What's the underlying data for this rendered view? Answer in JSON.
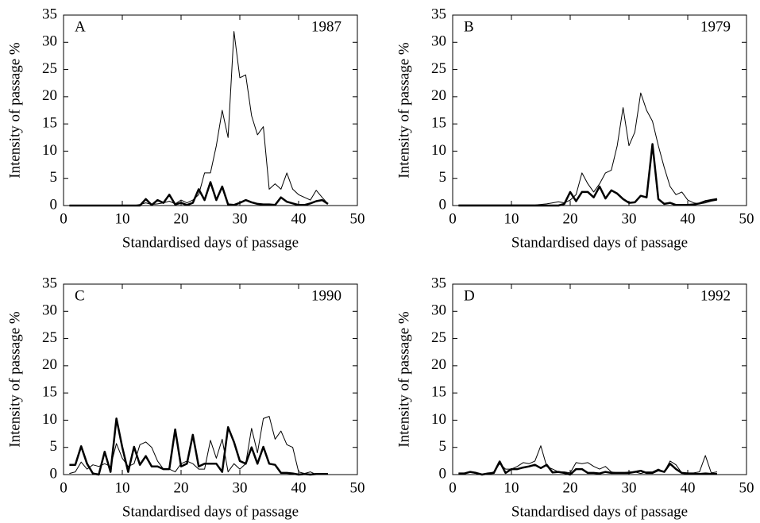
{
  "chart_data": [
    {
      "type": "line",
      "panel_label": "A",
      "annotation": "1987",
      "xlabel": "Standardised days of passage",
      "ylabel": "Intensity of passage %",
      "x": [
        1,
        2,
        3,
        4,
        5,
        6,
        7,
        8,
        9,
        10,
        11,
        12,
        13,
        14,
        15,
        16,
        17,
        18,
        19,
        20,
        21,
        22,
        23,
        24,
        25,
        26,
        27,
        28,
        29,
        30,
        31,
        32,
        33,
        34,
        35,
        36,
        37,
        38,
        39,
        40,
        41,
        42,
        43,
        44,
        45
      ],
      "series": [
        {
          "color": "#000000",
          "line_width": 1,
          "values": [
            0,
            0,
            0,
            0,
            0,
            0,
            0,
            0,
            0,
            0,
            0,
            0,
            0.2,
            0.5,
            0.2,
            0.3,
            0.5,
            0.8,
            0.3,
            1,
            0.5,
            1,
            2,
            6,
            6,
            11,
            17.5,
            12.5,
            32,
            23.5,
            24,
            16.5,
            13,
            14.5,
            3,
            4,
            3,
            6,
            3,
            2,
            1.5,
            1,
            2.8,
            1.5,
            0.3
          ]
        },
        {
          "color": "#000000",
          "line_width": 2.5,
          "values": [
            0,
            0,
            0,
            0,
            0,
            0,
            0,
            0,
            0,
            0,
            0,
            0,
            0,
            1.2,
            0.1,
            1,
            0.5,
            2,
            0.2,
            0.5,
            0.1,
            0.5,
            3,
            1,
            4.3,
            1,
            3.5,
            0.2,
            0.1,
            0.5,
            1,
            0.6,
            0.3,
            0.2,
            0.2,
            0.1,
            1.5,
            0.7,
            0.4,
            0.1,
            0.1,
            0.4,
            0.8,
            1,
            0.3
          ]
        }
      ],
      "xlim": [
        0,
        50
      ],
      "ylim": [
        0,
        35
      ],
      "xticks": [
        0,
        10,
        20,
        30,
        40,
        50
      ],
      "yticks": [
        0,
        5,
        10,
        15,
        20,
        25,
        30,
        35
      ]
    },
    {
      "type": "line",
      "panel_label": "B",
      "annotation": "1979",
      "xlabel": "Standardised days of passage",
      "ylabel": "Intensity of passage %",
      "x": [
        1,
        2,
        3,
        4,
        5,
        6,
        7,
        8,
        9,
        10,
        11,
        12,
        13,
        14,
        15,
        16,
        17,
        18,
        19,
        20,
        21,
        22,
        23,
        24,
        25,
        26,
        27,
        28,
        29,
        30,
        31,
        32,
        33,
        34,
        35,
        36,
        37,
        38,
        39,
        40,
        41,
        42,
        43,
        44,
        45
      ],
      "series": [
        {
          "color": "#000000",
          "line_width": 1,
          "values": [
            0.1,
            0.1,
            0.1,
            0.1,
            0.1,
            0.1,
            0.1,
            0.1,
            0.1,
            0.1,
            0.1,
            0.1,
            0.1,
            0.1,
            0.2,
            0.3,
            0.5,
            0.7,
            0.5,
            1,
            2,
            6,
            4,
            2.5,
            4,
            6,
            6.5,
            11,
            18,
            11,
            13.5,
            20.7,
            17.5,
            15.5,
            11,
            7,
            3.5,
            2,
            2.5,
            1,
            0.5,
            0.3,
            0.5,
            0.8,
            1
          ]
        },
        {
          "color": "#000000",
          "line_width": 2.5,
          "values": [
            0,
            0,
            0,
            0,
            0,
            0,
            0,
            0,
            0,
            0,
            0,
            0,
            0,
            0,
            0,
            0,
            0,
            0,
            0.3,
            2.5,
            0.8,
            2.5,
            2.5,
            1.5,
            3.5,
            1.3,
            2.8,
            2.2,
            1.2,
            0.5,
            0.6,
            1.8,
            1.5,
            11.3,
            1.2,
            0.3,
            0.5,
            0.1,
            0.1,
            0.1,
            0.2,
            0.4,
            0.8,
            1,
            1.2
          ]
        }
      ],
      "xlim": [
        0,
        50
      ],
      "ylim": [
        0,
        35
      ],
      "xticks": [
        0,
        10,
        20,
        30,
        40,
        50
      ],
      "yticks": [
        0,
        5,
        10,
        15,
        20,
        25,
        30,
        35
      ]
    },
    {
      "type": "line",
      "panel_label": "C",
      "annotation": "1990",
      "xlabel": "Standardised days of passage",
      "ylabel": "Intensity of passage %",
      "x": [
        1,
        2,
        3,
        4,
        5,
        6,
        7,
        8,
        9,
        10,
        11,
        12,
        13,
        14,
        15,
        16,
        17,
        18,
        19,
        20,
        21,
        22,
        23,
        24,
        25,
        26,
        27,
        28,
        29,
        30,
        31,
        32,
        33,
        34,
        35,
        36,
        37,
        38,
        39,
        40,
        41,
        42,
        43,
        44,
        45
      ],
      "series": [
        {
          "color": "#000000",
          "line_width": 1,
          "values": [
            0.2,
            0.5,
            2.3,
            1,
            1.8,
            1.5,
            2,
            1.5,
            5.7,
            3,
            1.5,
            2,
            5.5,
            6,
            5,
            2.5,
            1,
            1,
            0.5,
            2,
            2.5,
            2,
            1,
            1,
            6.3,
            3,
            6.5,
            0.5,
            2,
            1,
            2,
            8.5,
            4,
            10.3,
            10.7,
            6.5,
            8,
            5.5,
            5,
            0.5,
            0.2,
            0.5,
            0,
            0,
            0
          ]
        },
        {
          "color": "#000000",
          "line_width": 2.5,
          "values": [
            1.8,
            1.8,
            5.2,
            2,
            0.2,
            0,
            4.2,
            0.5,
            10.3,
            5,
            0.5,
            5.1,
            1.8,
            3.4,
            1.5,
            1.5,
            1,
            1,
            8.3,
            1.5,
            2,
            7.3,
            1.5,
            2,
            2,
            2,
            0.5,
            8.7,
            6,
            2.5,
            2,
            5,
            2,
            5.1,
            2,
            1.8,
            0.3,
            0.3,
            0.2,
            0,
            0.1,
            0,
            0.1,
            0.1,
            0.1
          ]
        }
      ],
      "xlim": [
        0,
        50
      ],
      "ylim": [
        0,
        35
      ],
      "xticks": [
        0,
        10,
        20,
        30,
        40,
        50
      ],
      "yticks": [
        0,
        5,
        10,
        15,
        20,
        25,
        30,
        35
      ]
    },
    {
      "type": "line",
      "panel_label": "D",
      "annotation": "1992",
      "xlabel": "Standardised days of passage",
      "ylabel": "Intensity of passage %",
      "x": [
        1,
        2,
        3,
        4,
        5,
        6,
        7,
        8,
        9,
        10,
        11,
        12,
        13,
        14,
        15,
        16,
        17,
        18,
        19,
        20,
        21,
        22,
        23,
        24,
        25,
        26,
        27,
        28,
        29,
        30,
        31,
        32,
        33,
        34,
        35,
        36,
        37,
        38,
        39,
        40,
        41,
        42,
        43,
        44,
        45
      ],
      "series": [
        {
          "color": "#000000",
          "line_width": 1,
          "values": [
            0.2,
            0.2,
            0.4,
            0.2,
            0,
            0.2,
            0.5,
            2,
            1,
            1,
            1.5,
            2.2,
            2,
            2.5,
            5.3,
            1.5,
            1,
            0.5,
            0.5,
            0.3,
            2.2,
            2,
            2.2,
            1.5,
            1,
            1.5,
            0.5,
            0.3,
            0.3,
            0.5,
            0.5,
            0.2,
            0.5,
            0.5,
            1,
            0.5,
            2.5,
            1.8,
            0.3,
            0.3,
            0.3,
            0.5,
            3.5,
            0.3,
            0.5
          ]
        },
        {
          "color": "#000000",
          "line_width": 2.5,
          "values": [
            0.2,
            0.2,
            0.5,
            0.3,
            0,
            0.2,
            0.3,
            2.4,
            0.3,
            1,
            1,
            1.3,
            1.5,
            1.8,
            1.2,
            1.8,
            0.4,
            0.5,
            0.3,
            0,
            1,
            1,
            0.3,
            0.3,
            0.2,
            0.5,
            0.3,
            0.3,
            0.3,
            0.3,
            0.5,
            0.7,
            0.3,
            0.3,
            0.8,
            0.5,
            2,
            1,
            0.3,
            0.2,
            0.1,
            0.1,
            0.2,
            0.1,
            0.1
          ]
        }
      ],
      "xlim": [
        0,
        50
      ],
      "ylim": [
        0,
        35
      ],
      "xticks": [
        0,
        10,
        20,
        30,
        40,
        50
      ],
      "yticks": [
        0,
        5,
        10,
        15,
        20,
        25,
        30,
        35
      ]
    }
  ]
}
